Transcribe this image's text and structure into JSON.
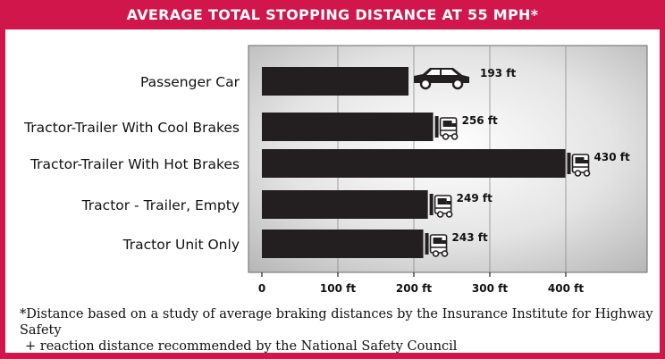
{
  "title": "AVERAGE TOTAL STOPPING DISTANCE AT 55 MPH*",
  "footnote": {
    "line1": "*Distance based on a study of average braking distances by the Insurance Institute for Highway Safety",
    "line2": "+ reaction distance recommended by the National Safety Council"
  },
  "colors": {
    "frame": "#d0164a",
    "bar": "#231f20",
    "plot_bg_center": "#ffffff",
    "plot_bg_edge": "#b9b9b9"
  },
  "chart_data": {
    "type": "bar",
    "orientation": "horizontal",
    "title": "AVERAGE TOTAL STOPPING DISTANCE AT 55 MPH*",
    "categories": [
      "Passenger Car",
      "Tractor-Trailer With Cool Brakes",
      "Tractor-Trailer With Hot Brakes",
      "Tractor - Trailer, Empty",
      "Tractor Unit Only"
    ],
    "values": [
      193,
      256,
      430,
      249,
      243
    ],
    "value_labels": [
      "193 ft",
      "256 ft",
      "430 ft",
      "249 ft",
      "243 ft"
    ],
    "icons": [
      "car-icon",
      "truck-icon",
      "truck-icon",
      "truck-icon",
      "truck-icon"
    ],
    "x_ticks": [
      0,
      100,
      200,
      300,
      400
    ],
    "x_tick_labels": [
      "0",
      "100 ft",
      "200 ft",
      "300 ft",
      "400 ft"
    ],
    "xlim": [
      0,
      500
    ],
    "grid": true,
    "xlabel": "",
    "ylabel": ""
  }
}
